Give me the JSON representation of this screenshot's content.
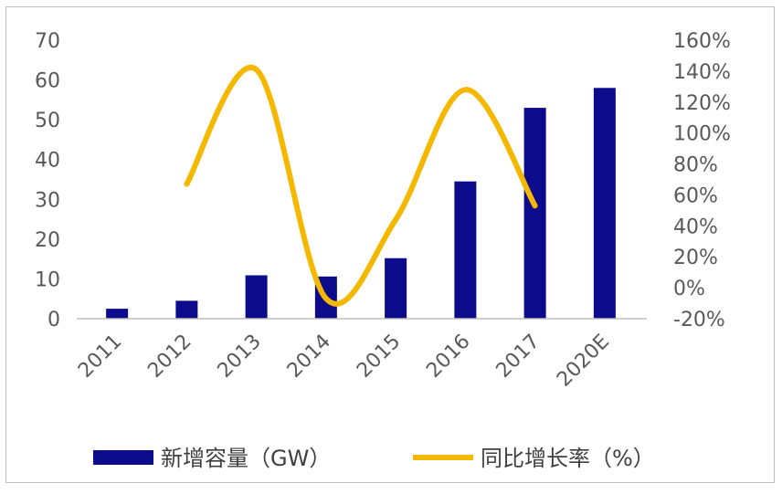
{
  "chart_data": {
    "type": "bar",
    "categories": [
      "2011",
      "2012",
      "2013",
      "2014",
      "2015",
      "2016",
      "2017",
      "2020E"
    ],
    "series": [
      {
        "name": "新增容量（GW）",
        "type": "bar",
        "axis": "left",
        "color": "#0b0b8c",
        "values": [
          2.5,
          4.5,
          10.9,
          10.6,
          15.2,
          34.5,
          53,
          58
        ]
      },
      {
        "name": "同比增长率（%）",
        "type": "line",
        "axis": "right",
        "color": "#f5b800",
        "values": [
          null,
          67,
          141,
          -7,
          44,
          128,
          53,
          null
        ]
      }
    ],
    "left_axis": {
      "ylim": [
        0,
        70
      ],
      "ticks": [
        "0",
        "10",
        "20",
        "30",
        "40",
        "50",
        "60",
        "70"
      ]
    },
    "right_axis": {
      "ylim": [
        -20,
        160
      ],
      "ticks": [
        "-20%",
        "0%",
        "20%",
        "40%",
        "60%",
        "80%",
        "100%",
        "120%",
        "140%",
        "160%"
      ]
    },
    "legend": {
      "placement": "bottom"
    },
    "grid": false
  }
}
